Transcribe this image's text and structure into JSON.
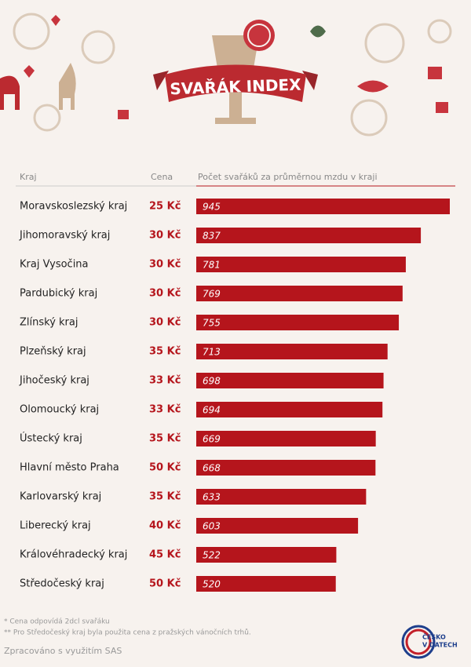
{
  "chart_data": {
    "type": "bar",
    "orientation": "horizontal",
    "title": "SVAŘÁK INDEX",
    "column_headers": [
      "Kraj",
      "Cena",
      "Počet svařáků za průměrnou mzdu v kraji"
    ],
    "categories": [
      "Moravskoslezský kraj",
      "Jihomoravský kraj",
      "Kraj Vysočina",
      "Pardubický kraj",
      "Zlínský kraj",
      "Plzeňský kraj",
      "Jihočeský kraj",
      "Olomoucký kraj",
      "Ústecký kraj",
      "Hlavní město Praha",
      "Karlovarský kraj",
      "Liberecký kraj",
      "Královéhradecký kraj",
      "Středočeský kraj"
    ],
    "prices": [
      "25 Kč",
      "30 Kč",
      "30 Kč",
      "30 Kč",
      "30 Kč",
      "35 Kč",
      "33 Kč",
      "33 Kč",
      "35 Kč",
      "50 Kč",
      "35 Kč",
      "40 Kč",
      "45 Kč",
      "50 Kč"
    ],
    "values": [
      945,
      837,
      781,
      769,
      755,
      713,
      698,
      694,
      669,
      668,
      633,
      603,
      522,
      520
    ],
    "color": "#b5151c"
  },
  "footnotes": [
    "* Cena odpovídá 2dcl svařáku",
    "** Pro Středočeský kraj byla použita cena z pražských vánočních trhů."
  ],
  "credit": "Zpracováno s využitím SAS",
  "logo": [
    "ČESKO",
    "V DATECH"
  ]
}
